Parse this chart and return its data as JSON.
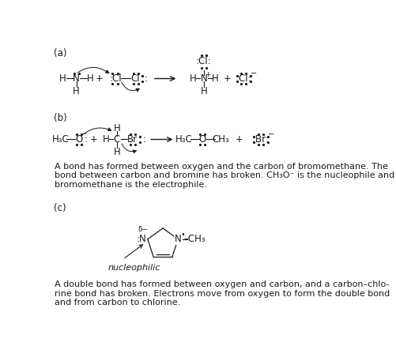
{
  "bg_color": "#ffffff",
  "text_color": "#1a1a1a",
  "gray_color": "#555555",
  "blue_color": "#2255aa",
  "sections": {
    "a_label": "(a)",
    "b_label": "(b)",
    "c_label": "(c)"
  },
  "paragraph_b_lines": [
    "A bond has formed between oxygen and the carbon of bromomethane. The",
    "bond between carbon and bromine has broken. CH₃O⁻ is the nucleophile and",
    "bromomethane is the electrophile."
  ],
  "paragraph_c_lines": [
    "A double bond has formed between oxygen and carbon, and a carbon–chlo-",
    "rine bond has broken. Electrons move from oxygen to form the double bond",
    "and from carbon to chlorine."
  ],
  "nucleophilic_label": "nucleophilic"
}
